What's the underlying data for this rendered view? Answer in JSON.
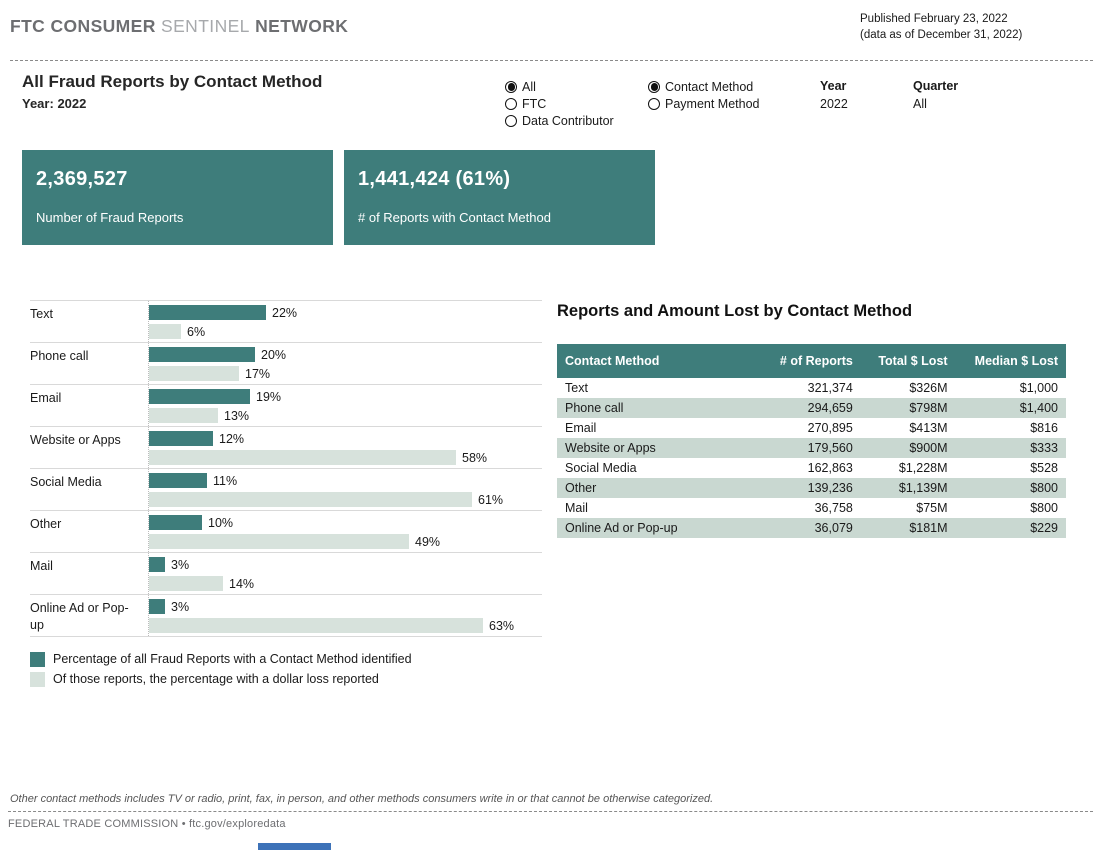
{
  "header": {
    "brand_part1": "FTC CONSUMER",
    "brand_part2": "SENTINEL",
    "brand_part3": "NETWORK",
    "published_line1": "Published February 23, 2022",
    "published_line2": "(data as of December 31, 2022)"
  },
  "controls": {
    "title": "All Fraud Reports by Contact Method",
    "year_label": "Year:",
    "year_value": "2022",
    "source_radio": {
      "options": [
        {
          "label": "All",
          "selected": true
        },
        {
          "label": "FTC",
          "selected": false
        },
        {
          "label": "Data Contributor",
          "selected": false
        }
      ]
    },
    "method_radio": {
      "options": [
        {
          "label": "Contact Method",
          "selected": true
        },
        {
          "label": "Payment Method",
          "selected": false
        }
      ]
    },
    "year_filter": {
      "label": "Year",
      "value": "2022"
    },
    "quarter_filter": {
      "label": "Quarter",
      "value": "All"
    }
  },
  "cards": [
    {
      "value": "2,369,527",
      "label": "Number of Fraud Reports"
    },
    {
      "value": "1,441,424 (61%)",
      "label": "# of Reports with Contact Method"
    }
  ],
  "chart_data": {
    "type": "bar",
    "orientation": "horizontal",
    "categories": [
      "Text",
      "Phone call",
      "Email",
      "Website or Apps",
      "Social Media",
      "Other",
      "Mail",
      "Online Ad or Pop-up"
    ],
    "series": [
      {
        "name": "Percentage of all Fraud Reports with a Contact Method identified",
        "color": "#3e7d7b",
        "values": [
          22,
          20,
          19,
          12,
          11,
          10,
          3,
          3
        ]
      },
      {
        "name": "Of those reports, the percentage with a dollar loss reported",
        "color": "#d7e2dc",
        "values": [
          6,
          17,
          13,
          58,
          61,
          49,
          14,
          63
        ]
      }
    ],
    "value_suffix": "%",
    "xlim": [
      0,
      70
    ],
    "grid": false,
    "legend_position": "bottom"
  },
  "table": {
    "title": "Reports and Amount Lost by Contact Method",
    "columns": [
      "Contact Method",
      "# of Reports",
      "Total $ Lost",
      "Median $ Lost"
    ],
    "rows": [
      [
        "Text",
        "321,374",
        "$326M",
        "$1,000"
      ],
      [
        "Phone call",
        "294,659",
        "$798M",
        "$1,400"
      ],
      [
        "Email",
        "270,895",
        "$413M",
        "$816"
      ],
      [
        "Website or Apps",
        "179,560",
        "$900M",
        "$333"
      ],
      [
        "Social Media",
        "162,863",
        "$1,228M",
        "$528"
      ],
      [
        "Other",
        "139,236",
        "$1,139M",
        "$800"
      ],
      [
        "Mail",
        "36,758",
        "$75M",
        "$800"
      ],
      [
        "Online Ad or Pop-up",
        "36,079",
        "$181M",
        "$229"
      ]
    ]
  },
  "footer": {
    "note": "Other contact methods includes TV or radio, print, fax, in person, and other methods consumers write in or that cannot be otherwise categorized.",
    "attribution": "FEDERAL TRADE COMMISSION • ftc.gov/exploredata"
  },
  "colors": {
    "teal": "#3e7d7b",
    "light_bar": "#d7e2dc",
    "alt_row": "#c9d8d1",
    "bottom_bar_blue": "#3d72b8"
  }
}
